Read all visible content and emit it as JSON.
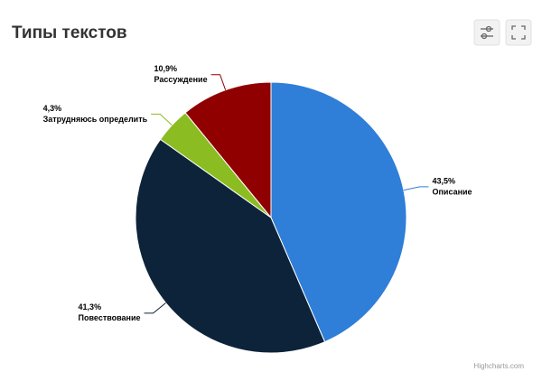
{
  "chart_data": {
    "type": "pie",
    "title": "Типы текстов",
    "categories": [
      "Описание",
      "Повествование",
      "Затрудняюсь определить",
      "Рассуждение"
    ],
    "values": [
      43.5,
      41.3,
      4.3,
      10.9
    ],
    "value_labels": [
      "43,5%",
      "41,3%",
      "4,3%",
      "10,9%"
    ],
    "colors": [
      "#2f7ed8",
      "#0d233a",
      "#8bbc21",
      "#910000"
    ],
    "credits": "Highcharts.com"
  }
}
